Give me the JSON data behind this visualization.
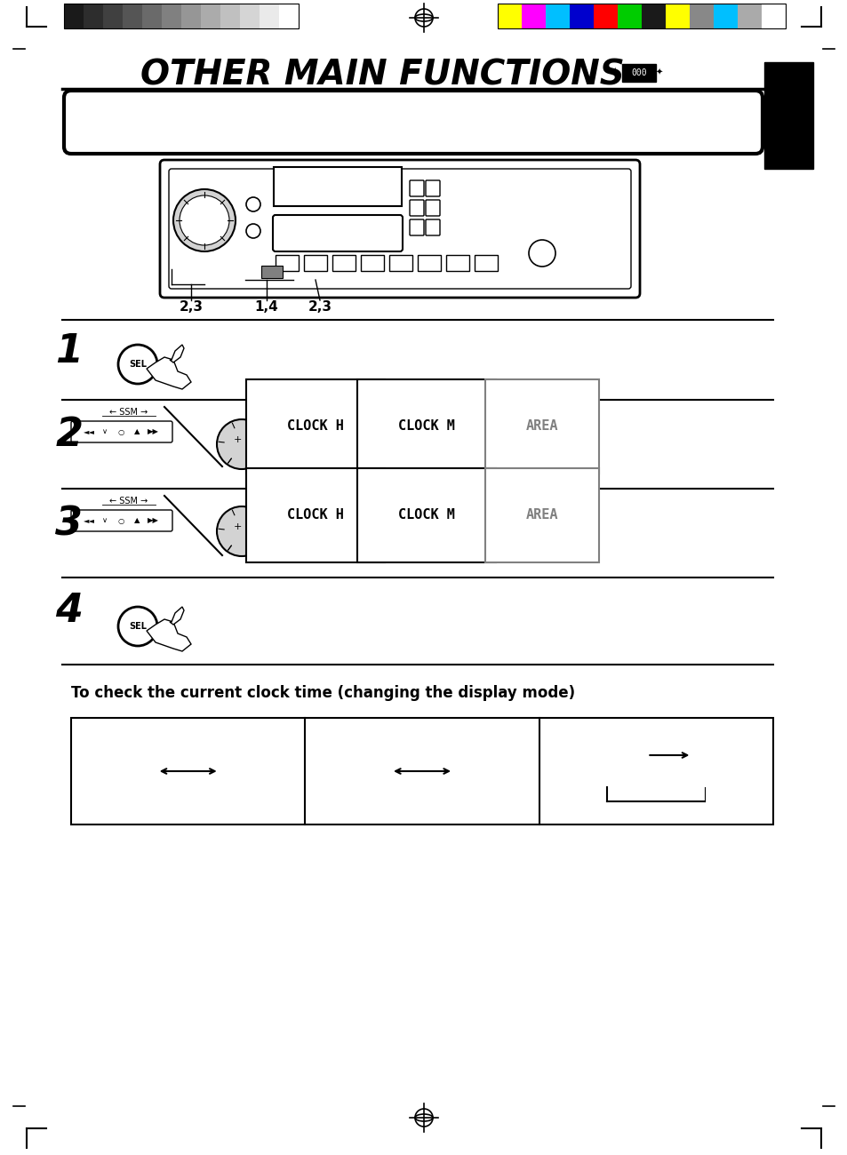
{
  "title": "OTHER MAIN FUNCTIONS",
  "background_color": "#ffffff",
  "grayscale_colors": [
    "#1a1a1a",
    "#2d2d2d",
    "#404040",
    "#555555",
    "#6a6a6a",
    "#808080",
    "#969696",
    "#ababab",
    "#c0c0c0",
    "#d5d5d5",
    "#eaeaea",
    "#ffffff"
  ],
  "color_bars": [
    "#ffff00",
    "#ff00ff",
    "#00ffff",
    "#0000ff",
    "#ff0000",
    "#00ff00",
    "#1a1a1a",
    "#ffff00",
    "#c0c0c0",
    "#00bfff"
  ],
  "step_labels": [
    "1",
    "2",
    "3",
    "4"
  ],
  "clock_sequence": [
    "CLOCK H",
    "CLOCK M",
    "AREA"
  ],
  "bottom_text": "To check the current clock time (changing the display mode)"
}
